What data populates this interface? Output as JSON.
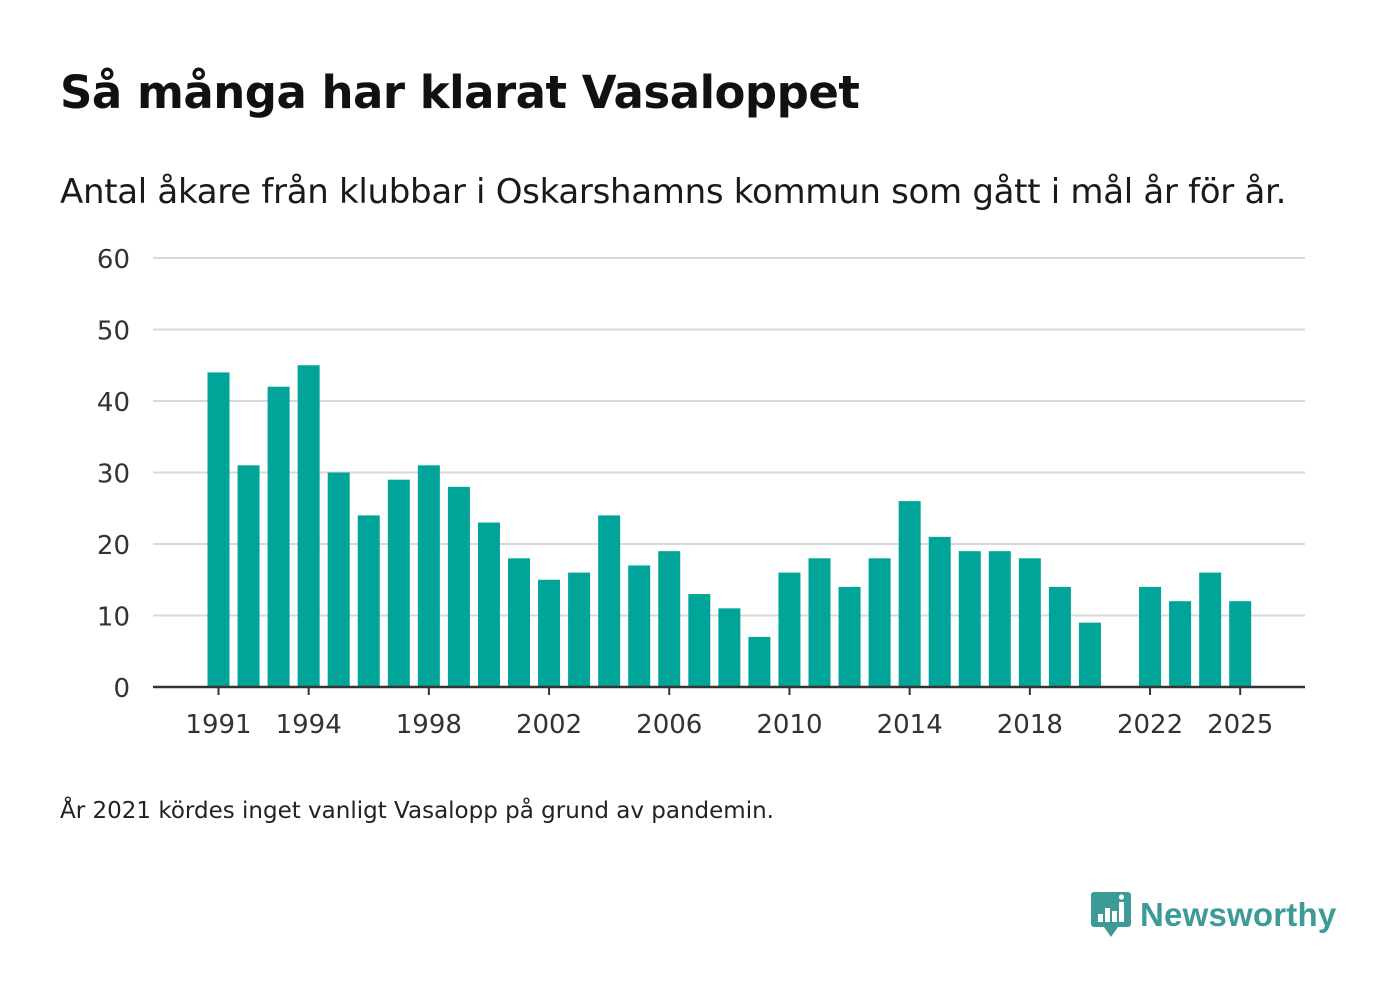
{
  "header": {
    "title": "Så många har klarat Vasaloppet",
    "subtitle": "Antal åkare från klubbar i Oskarshamns kommun som gått i mål år för år."
  },
  "footer": {
    "note": "År 2021 kördes inget vanligt Vasalopp på grund av pandemin.",
    "brand": "Newsworthy",
    "brand_icon": "bar-chart-bubble-icon"
  },
  "colors": {
    "bar": "#00a499",
    "grid": "#d9d9d9",
    "axis": "#333333",
    "tick_text": "#333333",
    "brand": "#3c9a97"
  },
  "chart_data": {
    "type": "bar",
    "title": "Så många har klarat Vasaloppet",
    "xlabel": "",
    "ylabel": "",
    "ylim": [
      0,
      60
    ],
    "yticks": [
      0,
      10,
      20,
      30,
      40,
      50,
      60
    ],
    "xticks": [
      1991,
      1994,
      1998,
      2002,
      2006,
      2010,
      2014,
      2018,
      2022,
      2025
    ],
    "grid": true,
    "categories": [
      1991,
      1992,
      1993,
      1994,
      1995,
      1996,
      1997,
      1998,
      1999,
      2000,
      2001,
      2002,
      2003,
      2004,
      2005,
      2006,
      2007,
      2008,
      2009,
      2010,
      2011,
      2012,
      2013,
      2014,
      2015,
      2016,
      2017,
      2018,
      2019,
      2020,
      2021,
      2022,
      2023,
      2024,
      2025
    ],
    "values": [
      44,
      31,
      42,
      45,
      30,
      24,
      29,
      31,
      28,
      23,
      18,
      15,
      16,
      24,
      17,
      19,
      13,
      11,
      7,
      16,
      18,
      14,
      18,
      26,
      21,
      19,
      19,
      18,
      14,
      9,
      0,
      14,
      12,
      16,
      12
    ]
  }
}
